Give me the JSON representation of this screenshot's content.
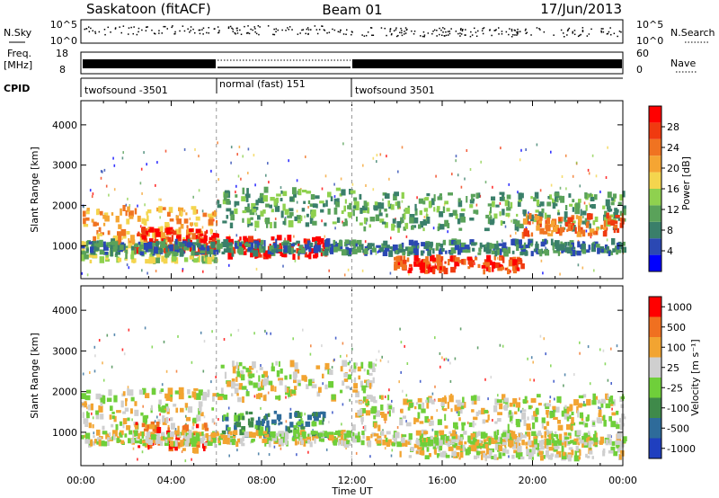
{
  "header": {
    "site": "Saskatoon (fitACF)",
    "beam": "Beam 01",
    "date": "17/Jun/2013"
  },
  "noise_panel": {
    "left_label": "N.Sky",
    "right_label": "N.Search",
    "ticks_left": [
      "10^5",
      "10^0"
    ],
    "ticks_right": [
      "10^5",
      "10^0"
    ]
  },
  "freq_panel": {
    "left_label_1": "Freq.",
    "left_label_2": "[MHz]",
    "right_label": "Nave",
    "ticks_left": [
      "18",
      "8"
    ],
    "ticks_right": [
      "60",
      "0"
    ]
  },
  "cpid_panel": {
    "label": "CPID",
    "segments": [
      {
        "text": "twofsound -3501",
        "start_h": 0,
        "end_h": 6
      },
      {
        "text": "normal (fast) 151",
        "start_h": 6,
        "end_h": 12
      },
      {
        "text": "twofsound 3501",
        "start_h": 12,
        "end_h": 24
      }
    ]
  },
  "chart_data": [
    {
      "type": "heatmap",
      "name": "power",
      "ylabel": "Slant Range [km]",
      "y_ticks": [
        "1000",
        "2000",
        "3000",
        "4000"
      ],
      "ylim": [
        180,
        4600
      ],
      "xlim_h": [
        0,
        24
      ],
      "colorbar_label": "Power [dB]",
      "colorbar_ticks": [
        "4",
        "8",
        "12",
        "16",
        "20",
        "24",
        "28"
      ],
      "colorbar_colors": [
        "#0000ff",
        "#2b48b3",
        "#3a7f6a",
        "#5aa25a",
        "#8fd14f",
        "#f4d54e",
        "#f5a533",
        "#f07321",
        "#f03a10",
        "#ff0000"
      ],
      "bands": [
        {
          "t0": 0,
          "t1": 6,
          "r0": 1050,
          "r1": 1950,
          "level": 6
        },
        {
          "t0": 0,
          "t1": 6,
          "r0": 600,
          "r1": 1050,
          "level": 4
        },
        {
          "t0": 2.3,
          "t1": 6,
          "r0": 800,
          "r1": 1400,
          "level": 9
        },
        {
          "t0": 6.3,
          "t1": 10.8,
          "r0": 700,
          "r1": 1200,
          "level": 9
        },
        {
          "t0": 6,
          "t1": 12,
          "r0": 1500,
          "r1": 2400,
          "level": 3
        },
        {
          "t0": 12,
          "t1": 24,
          "r0": 1400,
          "r1": 2300,
          "level": 3
        },
        {
          "t0": 13.8,
          "t1": 19.5,
          "r0": 350,
          "r1": 700,
          "level": 8
        },
        {
          "t0": 19.5,
          "t1": 24,
          "r0": 1250,
          "r1": 1750,
          "level": 7
        },
        {
          "t0": 0,
          "t1": 24,
          "r0": 800,
          "r1": 1100,
          "level": 2
        }
      ]
    },
    {
      "type": "heatmap",
      "name": "velocity",
      "ylabel": "Slant Range [km]",
      "y_ticks": [
        "1000",
        "2000",
        "3000",
        "4000"
      ],
      "ylim": [
        180,
        4600
      ],
      "xlim_h": [
        0,
        24
      ],
      "x_ticks": [
        "00:00",
        "04:00",
        "08:00",
        "12:00",
        "16:00",
        "20:00",
        "00:00"
      ],
      "xlabel": "Time UT",
      "colorbar_label": "Velocity [m s⁻¹]",
      "colorbar_ticks": [
        "1000",
        "500",
        "100",
        "25",
        "-25",
        "-100",
        "-500",
        "-1000"
      ],
      "colorbar_colors": [
        "#1f3fbf",
        "#2e6b9a",
        "#3f8a4a",
        "#6fcf3a",
        "#cfcfcf",
        "#f2a431",
        "#f07020",
        "#ff0000"
      ],
      "bands": [
        {
          "t0": 0,
          "t1": 6,
          "r0": 1100,
          "r1": 2050,
          "level": 4
        },
        {
          "t0": 2.2,
          "t1": 5.6,
          "r0": 550,
          "r1": 1200,
          "level": 6
        },
        {
          "t0": 6.2,
          "t1": 11,
          "r0": 900,
          "r1": 1500,
          "level": 2
        },
        {
          "t0": 6,
          "t1": 13,
          "r0": 1800,
          "r1": 2700,
          "level": 4
        },
        {
          "t0": 12,
          "t1": 24,
          "r0": 1100,
          "r1": 1900,
          "level": 4
        },
        {
          "t0": 14,
          "t1": 24,
          "r0": 350,
          "r1": 800,
          "level": 4
        },
        {
          "t0": 0,
          "t1": 24,
          "r0": 700,
          "r1": 1000,
          "level": 4
        }
      ]
    }
  ]
}
